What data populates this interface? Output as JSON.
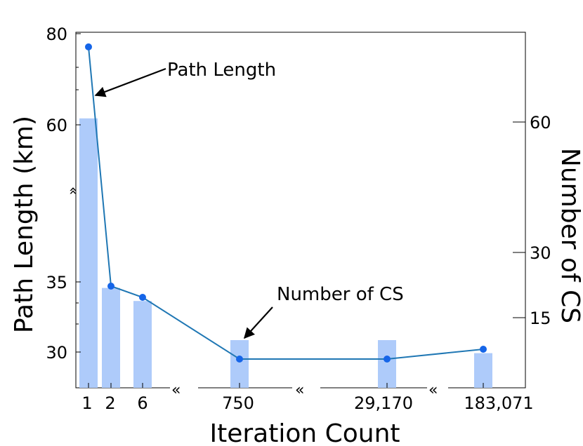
{
  "chart_data": {
    "type": "bar+line",
    "xlabel": "Iteration Count",
    "ylabel_left": "Path Length (km)",
    "ylabel_right": "Number of CS",
    "categories": [
      "1",
      "2",
      "6",
      "750",
      "29,170",
      "183,071"
    ],
    "left_axis": {
      "ticks": [
        "80",
        "60",
        "35",
        "30"
      ],
      "broken": true,
      "ylim_upper": [
        51,
        80
      ],
      "ylim_lower": [
        27.5,
        40
      ]
    },
    "right_axis": {
      "ticks": [
        "60",
        "30",
        "15"
      ],
      "ylim": [
        0,
        81
      ]
    },
    "series": [
      {
        "name": "Path Length",
        "kind": "line",
        "axis": "left",
        "color": "#1f77b4",
        "marker_color": "#1565e8",
        "values": [
          77.1,
          34.7,
          33.9,
          29.5,
          29.5,
          30.2
        ]
      },
      {
        "name": "Number of CS",
        "kind": "bar",
        "axis": "right",
        "color": "#aecbfa",
        "values": [
          61,
          22,
          19,
          10,
          10,
          7
        ]
      }
    ],
    "annotations": [
      {
        "text": "Path Length",
        "target_series": "Path Length"
      },
      {
        "text": "Number of CS",
        "target_series": "Number of CS"
      }
    ]
  }
}
